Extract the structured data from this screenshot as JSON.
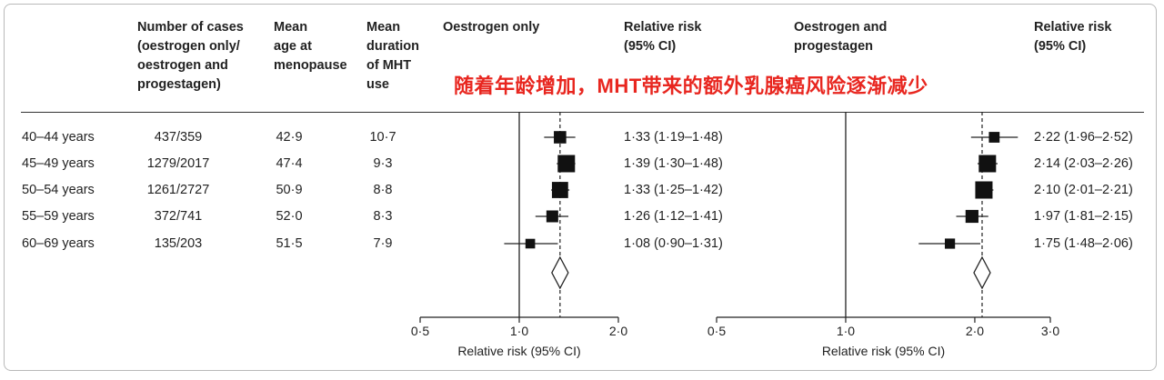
{
  "headers": {
    "cases": [
      "Number of cases",
      "(oestrogen only/",
      "oestrogen and",
      "progestagen)"
    ],
    "age": [
      "Mean",
      "age at",
      "menopause"
    ],
    "duration": [
      "Mean",
      "duration",
      "of MHT",
      "use"
    ],
    "oestrogen_only": [
      "Oestrogen only"
    ],
    "rr1": [
      "Relative risk",
      "(95% CI)"
    ],
    "oestrogen_progestagen": [
      "Oestrogen and",
      "progestagen"
    ],
    "rr2": [
      "Relative risk",
      "(95% CI)"
    ]
  },
  "annotation": "随着年龄增加，MHT带来的额外乳腺癌风险逐渐减少",
  "rows": [
    {
      "label": "40–44 years",
      "cases": "437/359",
      "age": "42·9",
      "duration": "10·7",
      "rr1": "1·33 (1·19–1·48)",
      "rr2": "2·22 (1·96–2·52)"
    },
    {
      "label": "45–49 years",
      "cases": "1279/2017",
      "age": "47·4",
      "duration": "9·3",
      "rr1": "1·39 (1·30–1·48)",
      "rr2": "2·14 (2·03–2·26)"
    },
    {
      "label": "50–54 years",
      "cases": "1261/2727",
      "age": "50·9",
      "duration": "8·8",
      "rr1": "1·33 (1·25–1·42)",
      "rr2": "2·10 (2·01–2·21)"
    },
    {
      "label": "55–59 years",
      "cases": "372/741",
      "age": "52·0",
      "duration": "8·3",
      "rr1": "1·26 (1·12–1·41)",
      "rr2": "1·97 (1·81–2·15)"
    },
    {
      "label": "60–69 years",
      "cases": "135/203",
      "age": "51·5",
      "duration": "7·9",
      "rr1": "1·08 (0·90–1·31)",
      "rr2": "1·75 (1·48–2·06)"
    }
  ],
  "chart_data": [
    {
      "type": "forest",
      "title": "Oestrogen only",
      "xlabel": "Relative risk (95% CI)",
      "xlim": [
        0.5,
        2.0
      ],
      "xticks": [
        0.5,
        1.0,
        2.0
      ],
      "xtick_labels": [
        "0·5",
        "1·0",
        "2·0"
      ],
      "reference_line": 1.0,
      "overall_estimate": 1.33,
      "categories": [
        "40–44 years",
        "45–49 years",
        "50–54 years",
        "55–59 years",
        "60–69 years"
      ],
      "estimates": [
        1.33,
        1.39,
        1.33,
        1.26,
        1.08
      ],
      "lower": [
        1.19,
        1.3,
        1.25,
        1.12,
        0.9
      ],
      "upper": [
        1.48,
        1.48,
        1.42,
        1.41,
        1.31
      ],
      "weights": [
        0.55,
        1.0,
        0.9,
        0.5,
        0.3
      ]
    },
    {
      "type": "forest",
      "title": "Oestrogen and progestagen",
      "xlabel": "Relative risk (95% CI)",
      "xlim": [
        0.5,
        3.0
      ],
      "xticks": [
        0.5,
        1.0,
        2.0,
        3.0
      ],
      "xtick_labels": [
        "0·5",
        "1·0",
        "2·0",
        "3·0"
      ],
      "reference_line": 1.0,
      "overall_estimate": 2.08,
      "categories": [
        "40–44 years",
        "45–49 years",
        "50–54 years",
        "55–59 years",
        "60–69 years"
      ],
      "estimates": [
        2.22,
        2.14,
        2.1,
        1.97,
        1.75
      ],
      "lower": [
        1.96,
        2.03,
        2.01,
        1.81,
        1.48
      ],
      "upper": [
        2.52,
        2.26,
        2.21,
        2.15,
        2.06
      ],
      "weights": [
        0.4,
        1.0,
        1.0,
        0.6,
        0.35
      ]
    }
  ]
}
